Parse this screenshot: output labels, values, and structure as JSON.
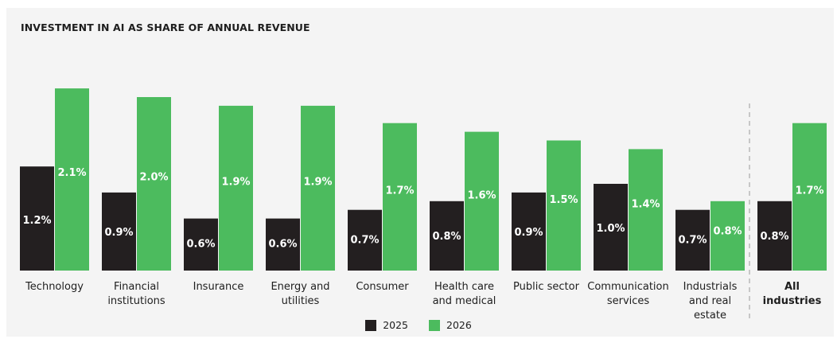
{
  "chart_data": {
    "type": "bar",
    "title": "INVESTMENT IN AI AS SHARE OF ANNUAL REVENUE",
    "xlabel": "",
    "ylabel": "",
    "ylim": [
      0,
      2.2
    ],
    "grid": false,
    "legend_position": "bottom-center",
    "categories": [
      "Technology",
      "Financial institutions",
      "Insurance",
      "Energy and utilities",
      "Consumer",
      "Health care and medical",
      "Public sector",
      "Communication services",
      "Industrials and real estate",
      "All industries"
    ],
    "category_label_lines": [
      [
        "Technology"
      ],
      [
        "Financial",
        "institutions"
      ],
      [
        "Insurance"
      ],
      [
        "Energy and",
        "utilities"
      ],
      [
        "Consumer"
      ],
      [
        "Health care",
        "and medical"
      ],
      [
        "Public sector"
      ],
      [
        "Communication",
        "services"
      ],
      [
        "Industrials",
        "and real",
        "estate"
      ],
      [
        "All",
        "industries"
      ]
    ],
    "emphasized_category": "All industries",
    "series": [
      {
        "name": "2025",
        "color": "#231f20",
        "values": [
          1.2,
          0.9,
          0.6,
          0.6,
          0.7,
          0.8,
          0.9,
          1.0,
          0.7,
          0.8
        ],
        "labels": [
          "1.2%",
          "0.9%",
          "0.6%",
          "0.6%",
          "0.7%",
          "0.8%",
          "0.9%",
          "1.0%",
          "0.7%",
          "0.8%"
        ]
      },
      {
        "name": "2026",
        "color": "#4cbb5e",
        "values": [
          2.1,
          2.0,
          1.9,
          1.9,
          1.7,
          1.6,
          1.5,
          1.4,
          0.8,
          1.7
        ],
        "labels": [
          "2.1%",
          "2.0%",
          "1.9%",
          "1.9%",
          "1.7%",
          "1.6%",
          "1.5%",
          "1.4%",
          "0.8%",
          "1.7%"
        ]
      }
    ]
  }
}
